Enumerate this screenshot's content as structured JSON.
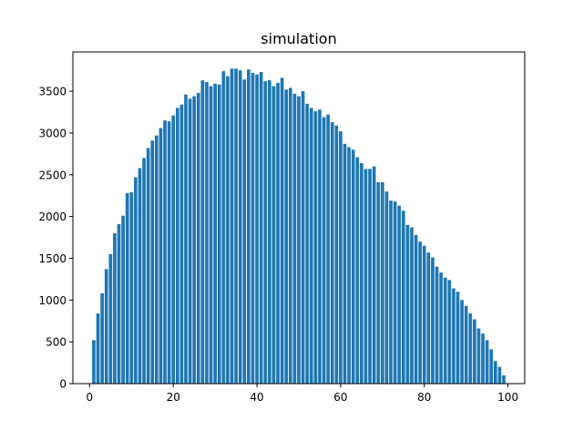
{
  "chart_data": {
    "type": "bar",
    "title": "simulation",
    "xlabel": "",
    "ylabel": "",
    "xlim": [
      -4.0,
      104.0
    ],
    "ylim": [
      0,
      3970
    ],
    "x_ticks": [
      0,
      20,
      40,
      60,
      80,
      100
    ],
    "y_ticks": [
      0,
      500,
      1000,
      1500,
      2000,
      2500,
      3000,
      3500
    ],
    "grid": false,
    "bar_width": 0.8,
    "color": "#1f77b4",
    "x": [
      1,
      2,
      3,
      4,
      5,
      6,
      7,
      8,
      9,
      10,
      11,
      12,
      13,
      14,
      15,
      16,
      17,
      18,
      19,
      20,
      21,
      22,
      23,
      24,
      25,
      26,
      27,
      28,
      29,
      30,
      31,
      32,
      33,
      34,
      35,
      36,
      37,
      38,
      39,
      40,
      41,
      42,
      43,
      44,
      45,
      46,
      47,
      48,
      49,
      50,
      51,
      52,
      53,
      54,
      55,
      56,
      57,
      58,
      59,
      60,
      61,
      62,
      63,
      64,
      65,
      66,
      67,
      68,
      69,
      70,
      71,
      72,
      73,
      74,
      75,
      76,
      77,
      78,
      79,
      80,
      81,
      82,
      83,
      84,
      85,
      86,
      87,
      88,
      89,
      90,
      91,
      92,
      93,
      94,
      95,
      96,
      97,
      98,
      99
    ],
    "values": [
      520,
      840,
      1080,
      1370,
      1550,
      1800,
      1910,
      2010,
      2280,
      2290,
      2470,
      2580,
      2700,
      2820,
      2910,
      2970,
      3060,
      3150,
      3140,
      3210,
      3300,
      3340,
      3460,
      3410,
      3440,
      3480,
      3630,
      3610,
      3560,
      3590,
      3580,
      3740,
      3680,
      3770,
      3770,
      3750,
      3640,
      3760,
      3720,
      3700,
      3730,
      3620,
      3630,
      3560,
      3600,
      3660,
      3520,
      3540,
      3470,
      3440,
      3500,
      3350,
      3300,
      3260,
      3280,
      3190,
      3220,
      3130,
      3090,
      3020,
      2870,
      2830,
      2800,
      2710,
      2640,
      2570,
      2570,
      2600,
      2410,
      2410,
      2300,
      2190,
      2180,
      2130,
      2070,
      1900,
      1870,
      1780,
      1700,
      1650,
      1570,
      1510,
      1400,
      1330,
      1270,
      1240,
      1140,
      1100,
      1000,
      930,
      840,
      770,
      660,
      600,
      520,
      410,
      270,
      200,
      100
    ]
  }
}
